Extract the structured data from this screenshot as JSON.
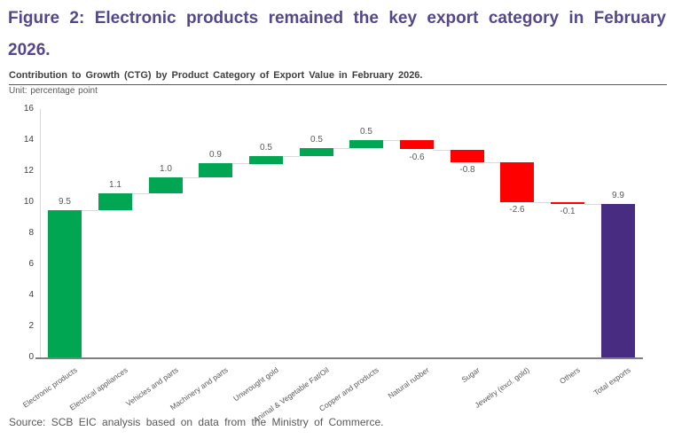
{
  "figure": {
    "title_line1": "Figure 2: Electronic products remained the key export category in February",
    "title_line2": "2026.",
    "source": "Source: SCB EIC analysis based on data from the Ministry of Commerce."
  },
  "colors": {
    "title_purple": "#54478a",
    "increase_green": "#00a651",
    "decrease_red": "#fe0000",
    "total_purple": "#472c82",
    "connector_gray": "#d9d9d9",
    "axis_line_gray": "#7f7f7f",
    "label_gray": "#595959"
  },
  "chart_data": {
    "type": "bar",
    "subtype": "waterfall",
    "title": "Contribution to Growth (CTG) by Product Category of Export Value in February 2026.",
    "unit_label": "Unit: percentage point",
    "xlabel": "",
    "ylabel": "percentage point",
    "ylim": [
      0,
      16
    ],
    "ytick_step": 2,
    "grid": false,
    "legend": null,
    "categories": [
      "Electronic products",
      "Electrical appliances",
      "Vehicles and parts",
      "Machinery and parts",
      "Unwrought gold",
      "Animal & Vegetable Fat/Oil",
      "Copper and products",
      "Natural rubber",
      "Sugar",
      "Jewelry (excl. gold)",
      "Others",
      "Total exports"
    ],
    "values": [
      9.5,
      1.1,
      1.0,
      0.9,
      0.5,
      0.5,
      0.5,
      -0.6,
      -0.8,
      -2.6,
      -0.1,
      9.9
    ],
    "value_labels": [
      "9.5",
      "1.1",
      "1.0",
      "0.9",
      "0.5",
      "0.5",
      "0.5",
      "-0.6",
      "-0.8",
      "-2.6",
      "-0.1",
      "9.9"
    ],
    "bar_types": [
      "increase",
      "increase",
      "increase",
      "increase",
      "increase",
      "increase",
      "increase",
      "decrease",
      "decrease",
      "decrease",
      "decrease",
      "total"
    ]
  }
}
